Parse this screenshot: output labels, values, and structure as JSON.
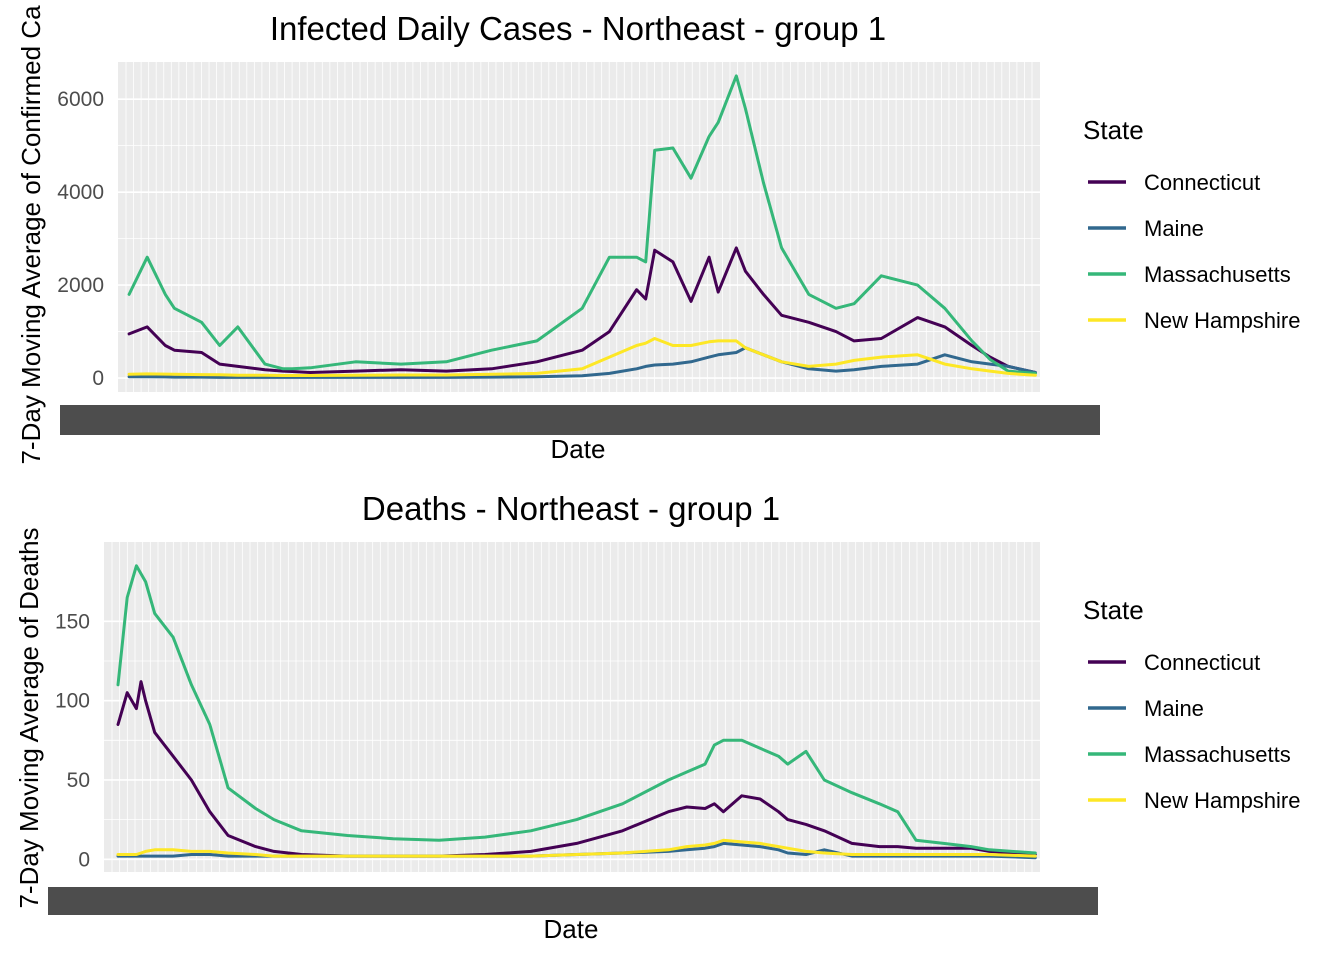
{
  "chart_data": [
    {
      "type": "line",
      "title": "Infected Daily Cases - Northeast - group 1",
      "xlabel": "Date",
      "ylabel": "7-Day Moving Average of Confirmed Ca",
      "yticks": [
        "0",
        "2000",
        "4000",
        "6000"
      ],
      "ylim": [
        -300,
        6800
      ],
      "grid": true,
      "legend": {
        "title": "State",
        "position": "right"
      },
      "x": [
        0,
        0.02,
        0.04,
        0.05,
        0.08,
        0.1,
        0.12,
        0.15,
        0.17,
        0.18,
        0.19,
        0.2,
        0.25,
        0.3,
        0.35,
        0.4,
        0.45,
        0.5,
        0.53,
        0.56,
        0.57,
        0.58,
        0.6,
        0.62,
        0.64,
        0.65,
        0.67,
        0.68,
        0.7,
        0.72,
        0.75,
        0.78,
        0.8,
        0.83,
        0.87,
        0.9,
        0.93,
        0.95,
        0.97,
        1.0
      ],
      "series": [
        {
          "name": "Connecticut",
          "color": "#440154",
          "values": [
            950,
            1100,
            700,
            600,
            550,
            300,
            250,
            180,
            150,
            140,
            130,
            120,
            150,
            180,
            150,
            200,
            350,
            600,
            1000,
            1900,
            1700,
            2750,
            2500,
            1650,
            2600,
            1850,
            2800,
            2300,
            1800,
            1350,
            1200,
            1000,
            800,
            850,
            1300,
            1100,
            700,
            450,
            250,
            120
          ]
        },
        {
          "name": "Maine",
          "color": "#31688e",
          "values": [
            30,
            30,
            25,
            20,
            20,
            15,
            15,
            15,
            15,
            15,
            15,
            15,
            15,
            15,
            15,
            20,
            30,
            50,
            100,
            200,
            250,
            280,
            300,
            350,
            450,
            500,
            550,
            650,
            500,
            350,
            200,
            150,
            180,
            250,
            300,
            500,
            350,
            300,
            250,
            120
          ]
        },
        {
          "name": "Massachusetts",
          "color": "#35b779",
          "values": [
            1800,
            2600,
            1800,
            1500,
            1200,
            700,
            1100,
            300,
            200,
            200,
            210,
            220,
            350,
            300,
            350,
            600,
            800,
            1500,
            2600,
            2600,
            2500,
            4900,
            4950,
            4300,
            5200,
            5500,
            6500,
            5800,
            4200,
            2800,
            1800,
            1500,
            1600,
            2200,
            2000,
            1500,
            800,
            400,
            150,
            100
          ]
        },
        {
          "name": "New Hampshire",
          "color": "#fde725",
          "values": [
            80,
            90,
            85,
            80,
            75,
            70,
            60,
            60,
            55,
            55,
            55,
            55,
            60,
            65,
            65,
            80,
            100,
            200,
            450,
            700,
            750,
            850,
            700,
            700,
            780,
            800,
            800,
            650,
            500,
            350,
            250,
            300,
            380,
            450,
            500,
            300,
            200,
            150,
            100,
            60
          ]
        }
      ]
    },
    {
      "type": "line",
      "title": "Deaths - Northeast - group 1",
      "xlabel": "Date",
      "ylabel": "7-Day Moving Average of Deaths",
      "yticks": [
        "0",
        "50",
        "100",
        "150"
      ],
      "ylim": [
        -8,
        200
      ],
      "grid": true,
      "legend": {
        "title": "State",
        "position": "right"
      },
      "x": [
        0,
        0.01,
        0.02,
        0.025,
        0.03,
        0.04,
        0.06,
        0.08,
        0.1,
        0.12,
        0.15,
        0.17,
        0.2,
        0.25,
        0.3,
        0.35,
        0.4,
        0.45,
        0.5,
        0.55,
        0.6,
        0.62,
        0.64,
        0.65,
        0.66,
        0.68,
        0.7,
        0.72,
        0.73,
        0.75,
        0.77,
        0.8,
        0.83,
        0.85,
        0.87,
        0.9,
        0.93,
        0.95,
        1.0
      ],
      "series": [
        {
          "name": "Connecticut",
          "color": "#440154",
          "values": [
            85,
            105,
            95,
            112,
            100,
            80,
            65,
            50,
            30,
            15,
            8,
            5,
            3,
            2,
            2,
            2,
            3,
            5,
            10,
            18,
            30,
            33,
            32,
            35,
            30,
            40,
            38,
            30,
            25,
            22,
            18,
            10,
            8,
            8,
            7,
            7,
            7,
            5,
            3
          ]
        },
        {
          "name": "Maine",
          "color": "#31688e",
          "values": [
            2,
            2,
            2,
            2,
            2,
            2,
            2,
            3,
            3,
            2,
            2,
            2,
            2,
            2,
            2,
            2,
            2,
            2,
            3,
            4,
            5,
            6,
            7,
            8,
            10,
            9,
            8,
            6,
            4,
            3,
            6,
            2,
            2,
            2,
            2,
            2,
            2,
            2,
            1
          ]
        },
        {
          "name": "Massachusetts",
          "color": "#35b779",
          "values": [
            110,
            165,
            185,
            180,
            175,
            155,
            140,
            110,
            85,
            45,
            32,
            25,
            18,
            15,
            13,
            12,
            14,
            18,
            25,
            35,
            50,
            55,
            60,
            72,
            75,
            75,
            70,
            65,
            60,
            68,
            50,
            42,
            35,
            30,
            12,
            10,
            8,
            6,
            4
          ]
        },
        {
          "name": "New Hampshire",
          "color": "#fde725",
          "values": [
            3,
            3,
            3,
            4,
            5,
            6,
            6,
            5,
            5,
            4,
            3,
            2,
            2,
            2,
            2,
            2,
            2,
            2,
            3,
            4,
            6,
            8,
            9,
            10,
            12,
            11,
            10,
            8,
            7,
            5,
            4,
            3,
            3,
            3,
            3,
            3,
            3,
            3,
            2
          ]
        }
      ]
    }
  ]
}
